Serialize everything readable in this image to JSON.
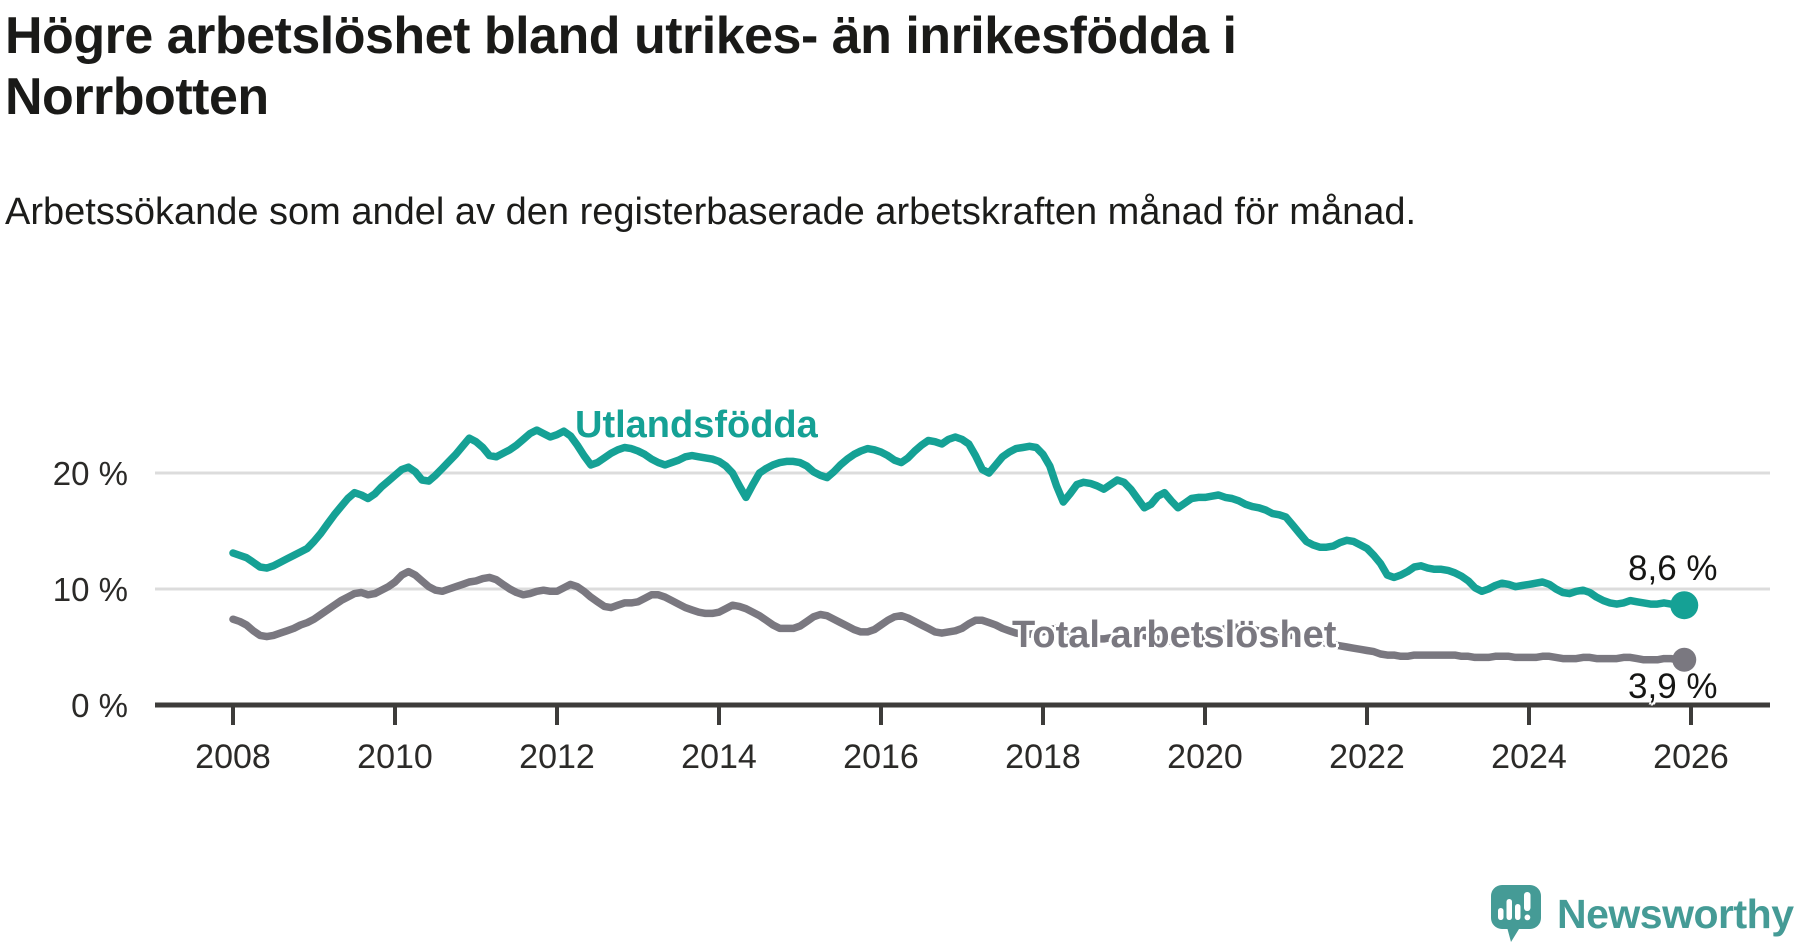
{
  "header": {
    "title": "Högre arbetslöshet bland utrikes- än inrikesfödda i Norrbotten",
    "subtitle": "Arbetssökande som andel av den registerbaserade arbetskraften månad för månad."
  },
  "footer": {
    "brand": "Newsworthy"
  },
  "colors": {
    "teal": "#15a195",
    "gray": "#7a7880",
    "axis": "#3d3c3a",
    "tick_text": "#2b2a28",
    "gridline": "#dcdcdc",
    "logo_teal": "#459b96"
  },
  "chart_data": {
    "type": "line",
    "title": "Högre arbetslöshet bland utrikes- än inrikesfödda i Norrbotten",
    "subtitle": "Arbetssökande som andel av den registerbaserade arbetskraften månad för månad.",
    "unit": "%",
    "x_start_year": 2008,
    "x_months_per_point": 1,
    "xlim": [
      2008,
      2026.3
    ],
    "ylim": [
      0,
      25.5
    ],
    "grid": "horizontal",
    "legend_position": "inline-labels",
    "x_ticks": [
      "2008",
      "2010",
      "2012",
      "2014",
      "2016",
      "2018",
      "2020",
      "2022",
      "2024",
      "2026"
    ],
    "y_ticks": [
      {
        "label": "0 %",
        "value": 0
      },
      {
        "label": "10 %",
        "value": 10
      },
      {
        "label": "20 %",
        "value": 20
      }
    ],
    "series": [
      {
        "name": "Utlandsfödda",
        "color": "#15a195",
        "end_label": "8,6 %",
        "end_value": 8.6,
        "values": [
          13.1,
          12.9,
          12.7,
          12.3,
          11.9,
          11.8,
          12.0,
          12.3,
          12.6,
          12.9,
          13.2,
          13.5,
          14.1,
          14.8,
          15.6,
          16.4,
          17.1,
          17.8,
          18.3,
          18.1,
          17.8,
          18.2,
          18.8,
          19.3,
          19.8,
          20.3,
          20.5,
          20.1,
          19.4,
          19.3,
          19.8,
          20.4,
          21.0,
          21.6,
          22.3,
          23.0,
          22.7,
          22.2,
          21.5,
          21.4,
          21.7,
          22.0,
          22.4,
          22.9,
          23.4,
          23.7,
          23.4,
          23.1,
          23.3,
          23.6,
          23.2,
          22.4,
          21.5,
          20.7,
          20.9,
          21.3,
          21.7,
          22.0,
          22.2,
          22.1,
          21.9,
          21.6,
          21.2,
          20.9,
          20.7,
          20.9,
          21.1,
          21.4,
          21.5,
          21.4,
          21.3,
          21.2,
          21.0,
          20.6,
          20.0,
          18.9,
          17.9,
          19.0,
          20.0,
          20.4,
          20.7,
          20.9,
          21.0,
          21.0,
          20.9,
          20.6,
          20.1,
          19.8,
          19.6,
          20.1,
          20.7,
          21.2,
          21.6,
          21.9,
          22.1,
          22.0,
          21.8,
          21.5,
          21.1,
          20.9,
          21.3,
          21.9,
          22.4,
          22.8,
          22.7,
          22.5,
          22.9,
          23.1,
          22.9,
          22.5,
          21.5,
          20.3,
          20.0,
          20.7,
          21.4,
          21.8,
          22.1,
          22.2,
          22.3,
          22.2,
          21.6,
          20.6,
          18.9,
          17.5,
          18.2,
          19.0,
          19.2,
          19.1,
          18.9,
          18.6,
          19.0,
          19.4,
          19.2,
          18.6,
          17.8,
          17.0,
          17.3,
          18.0,
          18.3,
          17.6,
          17.0,
          17.4,
          17.8,
          17.9,
          17.9,
          18.0,
          18.1,
          17.9,
          17.8,
          17.6,
          17.3,
          17.1,
          17.0,
          16.8,
          16.5,
          16.4,
          16.2,
          15.5,
          14.8,
          14.1,
          13.8,
          13.6,
          13.6,
          13.7,
          14.0,
          14.2,
          14.1,
          13.8,
          13.5,
          12.9,
          12.2,
          11.2,
          11.0,
          11.2,
          11.5,
          11.9,
          12.0,
          11.8,
          11.7,
          11.7,
          11.6,
          11.4,
          11.1,
          10.7,
          10.1,
          9.8,
          10.0,
          10.3,
          10.5,
          10.4,
          10.2,
          10.3,
          10.4,
          10.5,
          10.6,
          10.4,
          10.0,
          9.7,
          9.6,
          9.8,
          9.9,
          9.7,
          9.3,
          9.0,
          8.8,
          8.7,
          8.8,
          9.0,
          8.9,
          8.8,
          8.7,
          8.7,
          8.8,
          8.7,
          8.6,
          8.6
        ]
      },
      {
        "name": "Total arbetslöshet",
        "color": "#7a7880",
        "end_label": "3,9 %",
        "end_value": 3.9,
        "values": [
          7.4,
          7.2,
          6.9,
          6.4,
          6.0,
          5.9,
          6.0,
          6.2,
          6.4,
          6.6,
          6.9,
          7.1,
          7.4,
          7.8,
          8.2,
          8.6,
          9.0,
          9.3,
          9.6,
          9.7,
          9.5,
          9.6,
          9.9,
          10.2,
          10.6,
          11.2,
          11.5,
          11.2,
          10.7,
          10.2,
          9.9,
          9.8,
          10.0,
          10.2,
          10.4,
          10.6,
          10.7,
          10.9,
          11.0,
          10.8,
          10.4,
          10.0,
          9.7,
          9.5,
          9.6,
          9.8,
          9.9,
          9.8,
          9.8,
          10.1,
          10.4,
          10.2,
          9.8,
          9.3,
          8.9,
          8.5,
          8.4,
          8.6,
          8.8,
          8.8,
          8.9,
          9.2,
          9.5,
          9.5,
          9.3,
          9.0,
          8.7,
          8.4,
          8.2,
          8.0,
          7.9,
          7.9,
          8.0,
          8.3,
          8.6,
          8.5,
          8.3,
          8.0,
          7.7,
          7.3,
          6.9,
          6.6,
          6.6,
          6.6,
          6.8,
          7.2,
          7.6,
          7.8,
          7.7,
          7.4,
          7.1,
          6.8,
          6.5,
          6.3,
          6.3,
          6.5,
          6.9,
          7.3,
          7.6,
          7.7,
          7.5,
          7.2,
          6.9,
          6.6,
          6.3,
          6.2,
          6.3,
          6.4,
          6.6,
          7.0,
          7.3,
          7.3,
          7.1,
          6.9,
          6.6,
          6.4,
          6.2,
          6.1,
          6.1,
          6.2,
          6.3,
          6.5,
          6.6,
          6.5,
          6.3,
          6.1,
          5.9,
          5.8,
          5.7,
          5.7,
          5.8,
          5.9,
          6.0,
          6.1,
          6.1,
          6.0,
          5.8,
          5.7,
          5.6,
          5.5,
          5.5,
          5.5,
          5.6,
          5.7,
          5.8,
          6.0,
          6.3,
          6.6,
          6.7,
          6.7,
          6.6,
          6.5,
          6.4,
          6.2,
          6.1,
          6.0,
          6.0,
          6.0,
          5.9,
          5.8,
          5.6,
          5.5,
          5.3,
          5.2,
          5.1,
          5.0,
          4.9,
          4.8,
          4.7,
          4.6,
          4.4,
          4.3,
          4.3,
          4.2,
          4.2,
          4.3,
          4.3,
          4.3,
          4.3,
          4.3,
          4.3,
          4.3,
          4.2,
          4.2,
          4.1,
          4.1,
          4.1,
          4.2,
          4.2,
          4.2,
          4.1,
          4.1,
          4.1,
          4.1,
          4.2,
          4.2,
          4.1,
          4.0,
          4.0,
          4.0,
          4.1,
          4.1,
          4.0,
          4.0,
          4.0,
          4.0,
          4.1,
          4.1,
          4.0,
          3.9,
          3.9,
          3.9,
          4.0,
          4.0,
          3.9,
          3.9
        ]
      }
    ]
  }
}
